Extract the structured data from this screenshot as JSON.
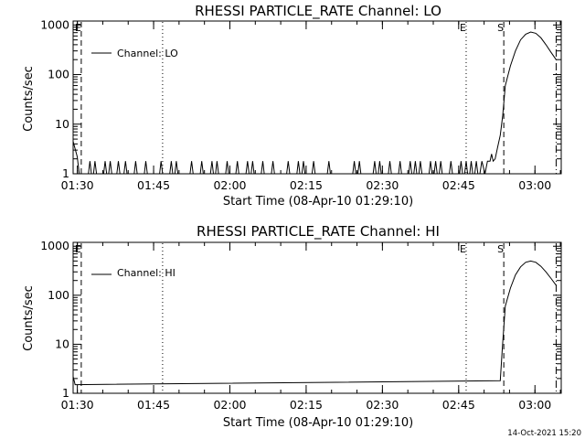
{
  "timestamp": "14-Oct-2021 15:20",
  "chart_data": [
    {
      "type": "line",
      "title": "RHESSI PARTICLE_RATE Channel: LO",
      "xlabel": "Start Time (08-Apr-10 01:29:10)",
      "ylabel": "Counts/sec",
      "legend": "Channel: LO",
      "legend_position": "top-left",
      "yscale": "log",
      "ylim": [
        1,
        1200
      ],
      "xlim_minutes": [
        0,
        96
      ],
      "x_ticks": [
        {
          "minute": 0.83,
          "label": "01:30"
        },
        {
          "minute": 15.83,
          "label": "01:45"
        },
        {
          "minute": 30.83,
          "label": "02:00"
        },
        {
          "minute": 45.83,
          "label": "02:15"
        },
        {
          "minute": 60.83,
          "label": "02:30"
        },
        {
          "minute": 75.83,
          "label": "02:45"
        },
        {
          "minute": 90.83,
          "label": "03:00"
        }
      ],
      "y_ticks": [
        {
          "value": 1,
          "label": "1"
        },
        {
          "value": 10,
          "label": "10"
        },
        {
          "value": 100,
          "label": "100"
        },
        {
          "value": 1000,
          "label": "1000"
        }
      ],
      "markers": [
        {
          "minute": 1.6,
          "style": "dash",
          "label": "E"
        },
        {
          "minute": 17.6,
          "style": "dot",
          "label": ""
        },
        {
          "minute": 77.3,
          "style": "dot",
          "label": "E"
        },
        {
          "minute": 84.7,
          "style": "dash",
          "label": "S"
        },
        {
          "minute": 95.0,
          "style": "dashdot",
          "label": ""
        }
      ],
      "series": [
        {
          "name": "Channel: LO",
          "x_minutes": [
            0.0,
            0.8,
            1.2,
            1.6,
            3.0,
            3.3,
            3.6,
            4.0,
            4.3,
            4.6,
            6.0,
            6.3,
            6.6,
            7.0,
            7.3,
            7.6,
            8.6,
            8.9,
            9.2,
            10.0,
            10.3,
            10.6,
            12.0,
            12.3,
            12.6,
            14.0,
            14.3,
            14.6,
            17.0,
            17.3,
            17.6,
            19.0,
            19.3,
            19.6,
            20.0,
            20.3,
            20.6,
            23.0,
            23.3,
            23.6,
            25.0,
            25.3,
            25.6,
            27.0,
            27.3,
            27.6,
            28.0,
            28.3,
            28.6,
            30.0,
            30.3,
            30.6,
            32.0,
            32.3,
            32.6,
            34.0,
            34.3,
            34.6,
            35.0,
            35.3,
            35.6,
            37.0,
            37.3,
            37.6,
            39.0,
            39.3,
            39.6,
            42.0,
            42.3,
            42.6,
            44.0,
            44.3,
            44.6,
            45.0,
            45.3,
            45.6,
            47.0,
            47.3,
            47.6,
            50.0,
            50.3,
            50.6,
            55.0,
            55.3,
            55.6,
            56.0,
            56.3,
            56.6,
            59.0,
            59.3,
            59.6,
            60.0,
            60.3,
            60.6,
            62.0,
            62.3,
            62.6,
            64.0,
            64.3,
            64.6,
            66.0,
            66.3,
            66.6,
            67.0,
            67.3,
            67.6,
            68.0,
            68.3,
            68.6,
            70.0,
            70.3,
            70.6,
            71.0,
            71.3,
            71.6,
            72.0,
            72.3,
            72.6,
            74.0,
            74.3,
            74.6,
            76.0,
            76.3,
            76.6,
            77.0,
            77.3,
            77.6,
            78.0,
            78.3,
            78.6,
            79.0,
            79.3,
            79.6,
            80.0,
            80.4,
            81.0,
            81.5,
            82.0,
            82.3,
            82.6,
            83.0,
            83.5,
            84.0,
            84.5,
            85.0,
            86.0,
            87.0,
            88.0,
            89.0,
            90.0,
            91.0,
            92.0,
            93.0,
            94.0,
            95.0
          ],
          "values": [
            4.5,
            2.2,
            1,
            1,
            1,
            1.8,
            1,
            1,
            1.8,
            1,
            1,
            1.8,
            1,
            1,
            1.8,
            1,
            1,
            1.8,
            1,
            1,
            1.8,
            1,
            1,
            1.8,
            1,
            1,
            1.8,
            1,
            1,
            1.8,
            1,
            1,
            1.8,
            1,
            1,
            1.8,
            1,
            1,
            1.8,
            1,
            1,
            1.8,
            1,
            1,
            1.8,
            1,
            1,
            1.8,
            1,
            1,
            1.8,
            1,
            1,
            1.8,
            1,
            1,
            1.8,
            1,
            1,
            1.8,
            1,
            1,
            1.8,
            1,
            1,
            1.8,
            1,
            1,
            1.8,
            1,
            1,
            1.8,
            1,
            1,
            1.8,
            1,
            1,
            1.8,
            1,
            1,
            1.8,
            1,
            1,
            1.8,
            1,
            1,
            1.8,
            1,
            1,
            1.8,
            1,
            1,
            1.8,
            1,
            1,
            1.8,
            1,
            1,
            1.8,
            1,
            1,
            1.8,
            1,
            1,
            1.8,
            1,
            1,
            1.8,
            1,
            1,
            1.8,
            1,
            1,
            1.8,
            1,
            1,
            1.8,
            1,
            1,
            1.8,
            1,
            1,
            1.8,
            1,
            1,
            1.8,
            1,
            1,
            1.8,
            1,
            1,
            1.8,
            1,
            1,
            1.8,
            1,
            1.8,
            1.8,
            2.5,
            1.8,
            2,
            3.5,
            6,
            15,
            60,
            150,
            300,
            500,
            650,
            720,
            680,
            550,
            400,
            280,
            200
          ]
        }
      ]
    },
    {
      "type": "line",
      "title": "RHESSI PARTICLE_RATE Channel: HI",
      "xlabel": "Start Time (08-Apr-10 01:29:10)",
      "ylabel": "Counts/sec",
      "legend": "Channel: HI",
      "legend_position": "top-left",
      "yscale": "log",
      "ylim": [
        1,
        1200
      ],
      "xlim_minutes": [
        0,
        96
      ],
      "x_ticks": [
        {
          "minute": 0.83,
          "label": "01:30"
        },
        {
          "minute": 15.83,
          "label": "01:45"
        },
        {
          "minute": 30.83,
          "label": "02:00"
        },
        {
          "minute": 45.83,
          "label": "02:15"
        },
        {
          "minute": 60.83,
          "label": "02:30"
        },
        {
          "minute": 75.83,
          "label": "02:45"
        },
        {
          "minute": 90.83,
          "label": "03:00"
        }
      ],
      "y_ticks": [
        {
          "value": 1,
          "label": "1"
        },
        {
          "value": 10,
          "label": "10"
        },
        {
          "value": 100,
          "label": "100"
        },
        {
          "value": 1000,
          "label": "1000"
        }
      ],
      "markers": [
        {
          "minute": 1.6,
          "style": "dash",
          "label": "E"
        },
        {
          "minute": 17.6,
          "style": "dot",
          "label": ""
        },
        {
          "minute": 77.3,
          "style": "dot",
          "label": "E"
        },
        {
          "minute": 84.7,
          "style": "dash",
          "label": "S"
        },
        {
          "minute": 95.0,
          "style": "dashdot",
          "label": ""
        }
      ],
      "series": [
        {
          "name": "Channel: HI",
          "x_minutes": [
            0.0,
            0.4,
            84.0,
            84.4,
            85.0,
            86.0,
            87.0,
            88.0,
            89.0,
            90.0,
            91.0,
            92.0,
            93.0,
            94.0,
            95.0
          ],
          "values": [
            2.2,
            1.5,
            1.8,
            8,
            60,
            140,
            260,
            380,
            470,
            500,
            470,
            390,
            300,
            220,
            160
          ]
        }
      ]
    }
  ]
}
